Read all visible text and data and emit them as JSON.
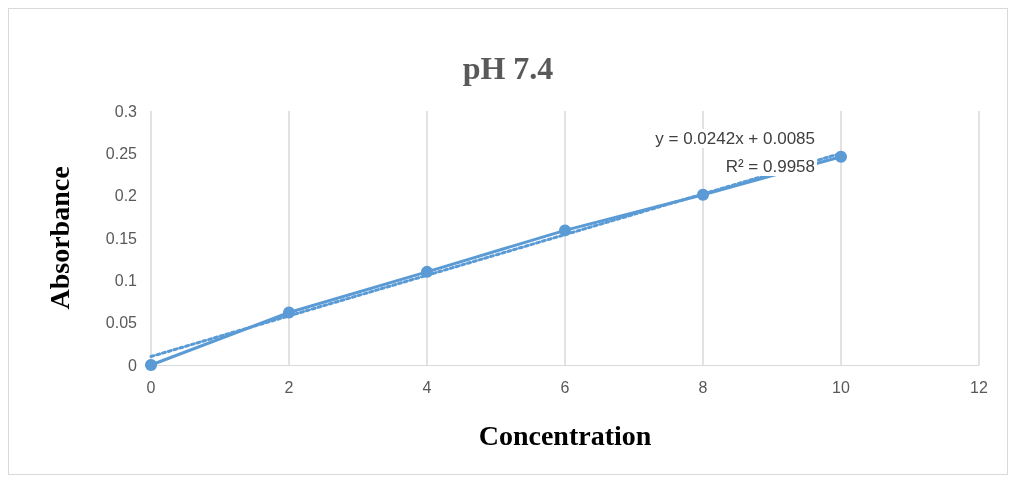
{
  "chart_data": {
    "type": "line",
    "title": "pH 7.4",
    "xlabel": "Concentration",
    "ylabel": "Absorbance",
    "xlim": [
      0,
      12
    ],
    "xticks": [
      0,
      2,
      4,
      6,
      8,
      10,
      12
    ],
    "ylim": [
      0,
      0.3
    ],
    "yticks": [
      0,
      0.05,
      0.1,
      0.15,
      0.2,
      0.25,
      0.3
    ],
    "grid": "x",
    "marker": "circle",
    "line_style": "solid",
    "series": [
      {
        "color": "#5b9bd5",
        "x": [
          0,
          2,
          4,
          6,
          8,
          10
        ],
        "values": [
          0,
          0.062,
          0.11,
          0.159,
          0.201,
          0.246
        ]
      },
      {
        "type": "line",
        "color": "#5b9bd5",
        "x": [
          0,
          10
        ],
        "values": [
          0.01,
          0.25
        ],
        "marker": "none",
        "line_style": "dotted"
      }
    ],
    "annotations": [
      "y = 0.0242x + 0.0085",
      "R² = 0.9958"
    ]
  }
}
